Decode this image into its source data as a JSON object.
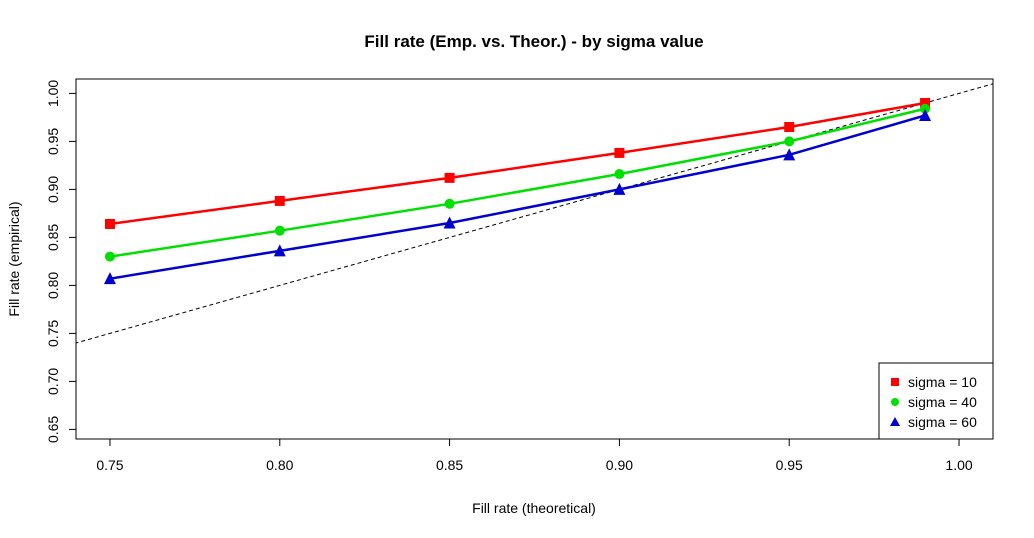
{
  "chart_data": {
    "type": "line",
    "title": "Fill rate (Emp. vs. Theor.) - by sigma value",
    "xlabel": "Fill rate (theoretical)",
    "ylabel": "Fill rate (empirical)",
    "xlim": [
      0.74,
      1.01
    ],
    "ylim": [
      0.64,
      1.015
    ],
    "x_ticks": [
      "0.75",
      "0.80",
      "0.85",
      "0.90",
      "0.95",
      "1.00"
    ],
    "y_ticks": [
      "0.65",
      "0.70",
      "0.75",
      "0.80",
      "0.85",
      "0.90",
      "0.95",
      "1.00"
    ],
    "x": [
      0.75,
      0.8,
      0.85,
      0.9,
      0.95,
      0.99
    ],
    "series": [
      {
        "name": "sigma = 10",
        "color": "#ff0000",
        "marker": "square",
        "values": [
          0.864,
          0.888,
          0.912,
          0.938,
          0.965,
          0.99
        ]
      },
      {
        "name": "sigma = 40",
        "color": "#00e000",
        "marker": "circle",
        "values": [
          0.83,
          0.857,
          0.885,
          0.916,
          0.95,
          0.984
        ]
      },
      {
        "name": "sigma = 60",
        "color": "#0000d0",
        "marker": "triangle",
        "values": [
          0.807,
          0.836,
          0.865,
          0.9,
          0.936,
          0.977
        ]
      }
    ],
    "reference_line": {
      "style": "dashed",
      "color": "#000000",
      "slope": 1,
      "intercept": 0
    },
    "legend_position": "bottom-right",
    "grid": false
  }
}
